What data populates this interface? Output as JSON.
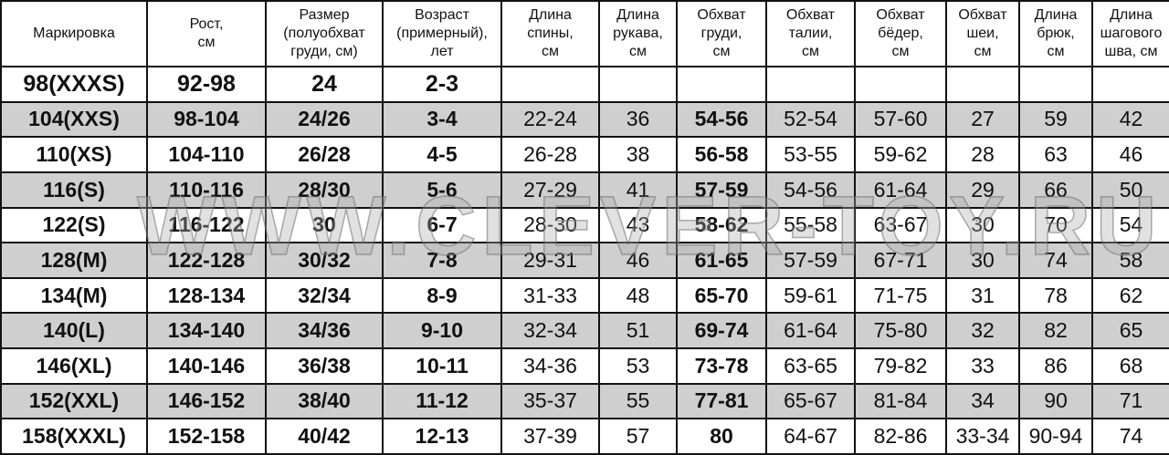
{
  "headers": [
    "Маркировка",
    "Рост,\nсм",
    "Размер\n(полуобхват\nгруди, см)",
    "Возраст\n(примерный),\nлет",
    "Длина\nспины,\nсм",
    "Длина\nрукава,\nсм",
    "Обхват\nгруди,\nсм",
    "Обхват\nталии,\nсм",
    "Обхват\nбёдер,\nсм",
    "Обхват\nшеи,\nсм",
    "Длина\nбрюк,\nсм",
    "Длина\nшагового\nшва, см"
  ],
  "rows": [
    [
      "98(XXXS)",
      "92-98",
      "24",
      "2-3",
      "",
      "",
      "",
      "",
      "",
      "",
      "",
      ""
    ],
    [
      "104(XXS)",
      "98-104",
      "24/26",
      "3-4",
      "22-24",
      "36",
      "54-56",
      "52-54",
      "57-60",
      "27",
      "59",
      "42"
    ],
    [
      "110(XS)",
      "104-110",
      "26/28",
      "4-5",
      "26-28",
      "38",
      "56-58",
      "53-55",
      "59-62",
      "28",
      "63",
      "46"
    ],
    [
      "116(S)",
      "110-116",
      "28/30",
      "5-6",
      "27-29",
      "41",
      "57-59",
      "54-56",
      "61-64",
      "29",
      "66",
      "50"
    ],
    [
      "122(S)",
      "116-122",
      "30",
      "6-7",
      "28-30",
      "43",
      "58-62",
      "55-58",
      "63-67",
      "30",
      "70",
      "54"
    ],
    [
      "128(M)",
      "122-128",
      "30/32",
      "7-8",
      "29-31",
      "46",
      "61-65",
      "57-59",
      "67-71",
      "30",
      "74",
      "58"
    ],
    [
      "134(M)",
      "128-134",
      "32/34",
      "8-9",
      "31-33",
      "48",
      "65-70",
      "59-61",
      "71-75",
      "31",
      "78",
      "62"
    ],
    [
      "140(L)",
      "134-140",
      "34/36",
      "9-10",
      "32-34",
      "51",
      "69-74",
      "61-64",
      "75-80",
      "32",
      "82",
      "65"
    ],
    [
      "146(XL)",
      "140-146",
      "36/38",
      "10-11",
      "34-36",
      "53",
      "73-78",
      "63-65",
      "79-82",
      "33",
      "86",
      "68"
    ],
    [
      "152(XXL)",
      "146-152",
      "38/40",
      "11-12",
      "35-37",
      "55",
      "77-81",
      "65-67",
      "81-84",
      "34",
      "90",
      "71"
    ],
    [
      "158(XXXL)",
      "152-158",
      "40/42",
      "12-13",
      "37-39",
      "57",
      "80",
      "64-67",
      "82-86",
      "33-34",
      "90-94",
      "74"
    ]
  ],
  "watermark": "WWW.CLEVER-TOY.RU",
  "colors": {
    "stripe": "#cfcfcf",
    "border": "#111111"
  }
}
